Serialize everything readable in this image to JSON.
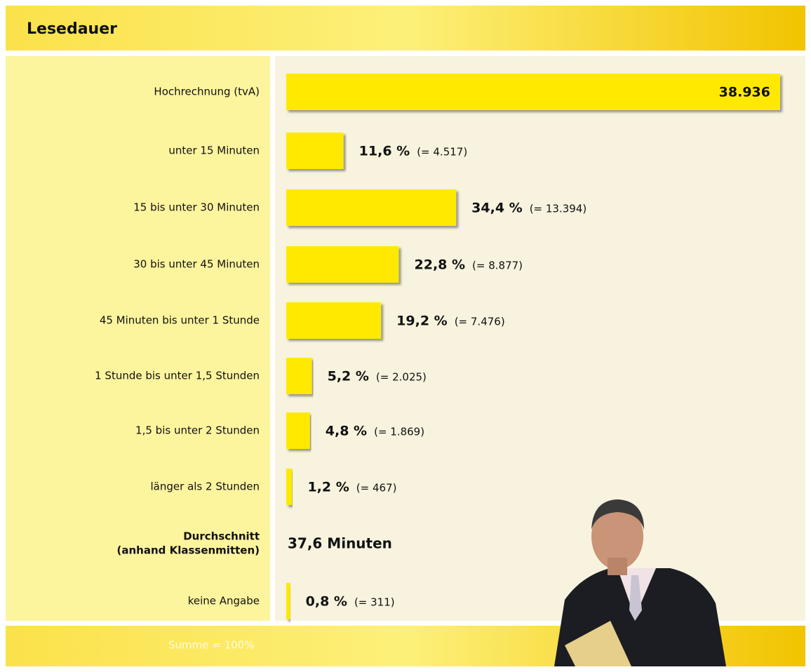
{
  "chart_data": {
    "type": "bar",
    "orientation": "horizontal",
    "title": "Lesedauer",
    "total": {
      "label": "Hochrechnung (tvA)",
      "value": 38936,
      "value_label": "38.936"
    },
    "categories": [
      "unter 15 Minuten",
      "15 bis unter 30 Minuten",
      "30 bis unter 45 Minuten",
      "45 Minuten bis unter 1 Stunde",
      "1 Stunde bis unter 1,5 Stunden",
      "1,5 bis unter 2 Stunden",
      "länger als 2 Stunden",
      "keine Angabe"
    ],
    "values": [
      11.6,
      34.4,
      22.8,
      19.2,
      5.2,
      4.8,
      1.2,
      0.8
    ],
    "value_labels": [
      "11,6 %",
      "34,4 %",
      "22,8 %",
      "19,2 %",
      "5,2 %",
      "4,8 %",
      "1,2 %",
      "0,8 %"
    ],
    "counts": [
      4517,
      13394,
      8877,
      7476,
      2025,
      1869,
      467,
      311
    ],
    "count_labels": [
      "(= 4.517)",
      "(= 13.394)",
      "(= 8.877)",
      "(= 7.476)",
      "(= 2.025)",
      "(= 1.869)",
      "(= 467)",
      "(= 311)"
    ],
    "average": {
      "label_lines": [
        "Durchschnitt",
        "(anhand Klassenmitten)"
      ],
      "value": 37.6,
      "value_label": "37,6 Minuten"
    },
    "footer": "Summe = 100%",
    "color": "#ffe900",
    "xlim": [
      0,
      100
    ]
  }
}
